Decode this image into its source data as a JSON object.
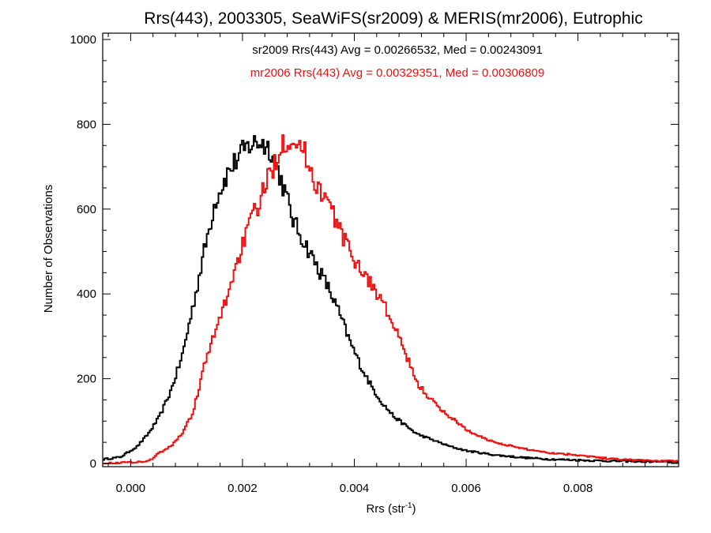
{
  "chart_data": {
    "type": "line",
    "title": "Rrs(443), 2003305, SeaWiFS(sr2009) & MERIS(mr2006), Eutrophic",
    "xlabel": "Rrs (str",
    "xlabel_sup": "-1",
    "xlabel_end": ")",
    "ylabel": "Number of Observations",
    "xlim": [
      -0.0005,
      0.0098
    ],
    "ylim": [
      0,
      1000
    ],
    "xticks": [
      0.0,
      0.002,
      0.004,
      0.006,
      0.008
    ],
    "xtick_labels": [
      "0.000",
      "0.002",
      "0.004",
      "0.006",
      "0.008"
    ],
    "yticks": [
      0,
      200,
      400,
      600,
      800,
      1000
    ],
    "ytick_labels": [
      "0",
      "200",
      "400",
      "600",
      "800",
      "1000"
    ],
    "grid": false,
    "legend_position": "top-center",
    "step": true,
    "series": [
      {
        "name": "sr2009 Rrs(443) Avg = 0.00266532, Med = 0.00243091",
        "color": "#000000",
        "x": [
          -0.0005,
          -0.0002,
          0.0001,
          0.0003,
          0.0005,
          0.0007,
          0.0009,
          0.0011,
          0.0013,
          0.0015,
          0.0017,
          0.0019,
          0.0021,
          0.0023,
          0.0025,
          0.0027,
          0.0029,
          0.0031,
          0.0033,
          0.0035,
          0.0037,
          0.0039,
          0.0041,
          0.0043,
          0.0045,
          0.0047,
          0.0049,
          0.0051,
          0.0053,
          0.0055,
          0.0057,
          0.006,
          0.0065,
          0.007,
          0.0075,
          0.008,
          0.0085,
          0.009,
          0.0095,
          0.0098
        ],
        "y": [
          10,
          15,
          40,
          70,
          110,
          170,
          250,
          370,
          500,
          620,
          680,
          720,
          750,
          760,
          740,
          660,
          570,
          520,
          470,
          420,
          360,
          290,
          230,
          180,
          140,
          110,
          90,
          70,
          60,
          50,
          40,
          30,
          20,
          14,
          10,
          8,
          6,
          5,
          4,
          3
        ]
      },
      {
        "name": "mr2006 Rrs(443) Avg = 0.00329351, Med = 0.00306809",
        "color": "#ee1111",
        "x": [
          -0.0005,
          0.0003,
          0.0005,
          0.0007,
          0.0009,
          0.0011,
          0.0013,
          0.0015,
          0.0017,
          0.0019,
          0.0021,
          0.0023,
          0.0025,
          0.0027,
          0.0029,
          0.0031,
          0.0033,
          0.0035,
          0.0037,
          0.0039,
          0.0041,
          0.0043,
          0.0045,
          0.0047,
          0.0049,
          0.0051,
          0.0053,
          0.0055,
          0.0057,
          0.0059,
          0.0061,
          0.0065,
          0.007,
          0.0075,
          0.008,
          0.0085,
          0.009,
          0.0095,
          0.0098
        ],
        "y": [
          0,
          5,
          25,
          40,
          70,
          120,
          230,
          310,
          390,
          480,
          560,
          620,
          690,
          760,
          770,
          730,
          660,
          620,
          560,
          500,
          460,
          420,
          380,
          320,
          260,
          190,
          160,
          130,
          110,
          90,
          70,
          50,
          35,
          25,
          20,
          12,
          8,
          6,
          5
        ]
      }
    ]
  }
}
